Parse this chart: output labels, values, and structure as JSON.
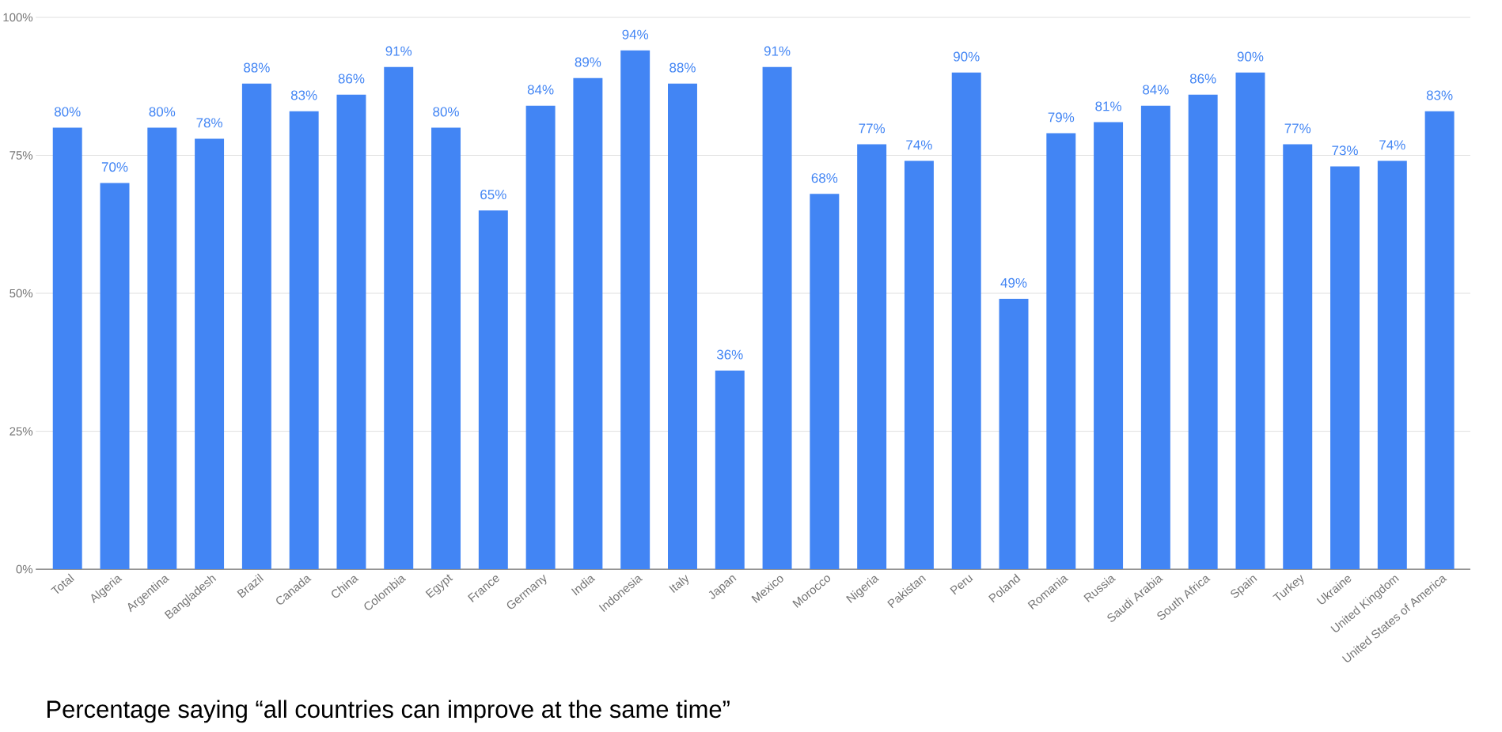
{
  "chart_data": {
    "type": "bar",
    "categories": [
      "Total",
      "Algeria",
      "Argentina",
      "Bangladesh",
      "Brazil",
      "Canada",
      "China",
      "Colombia",
      "Egypt",
      "France",
      "Germany",
      "India",
      "Indonesia",
      "Italy",
      "Japan",
      "Mexico",
      "Morocco",
      "Nigeria",
      "Pakistan",
      "Peru",
      "Poland",
      "Romania",
      "Russia",
      "Saudi Arabia",
      "South Africa",
      "Spain",
      "Turkey",
      "Ukraine",
      "United Kingdom",
      "United States of America"
    ],
    "values": [
      80,
      70,
      80,
      78,
      88,
      83,
      86,
      91,
      80,
      65,
      84,
      89,
      94,
      88,
      36,
      91,
      68,
      77,
      74,
      90,
      49,
      79,
      81,
      84,
      86,
      90,
      77,
      73,
      74,
      83
    ],
    "value_labels": [
      "80%",
      "70%",
      "80%",
      "78%",
      "88%",
      "83%",
      "86%",
      "91%",
      "80%",
      "65%",
      "84%",
      "89%",
      "94%",
      "88%",
      "36%",
      "91%",
      "68%",
      "77%",
      "74%",
      "90%",
      "49%",
      "79%",
      "81%",
      "84%",
      "86%",
      "90%",
      "77%",
      "73%",
      "74%",
      "83%"
    ],
    "color": "#4285f4",
    "ylim": [
      0,
      100
    ],
    "yticks": [
      {
        "value": 0,
        "label": "0%"
      },
      {
        "value": 25,
        "label": "25%"
      },
      {
        "value": 50,
        "label": "50%"
      },
      {
        "value": 75,
        "label": "75%"
      },
      {
        "value": 100,
        "label": "100%"
      }
    ],
    "grid": "y",
    "annotations": [
      "Percentage saying “all countries can improve at the same time”"
    ]
  }
}
